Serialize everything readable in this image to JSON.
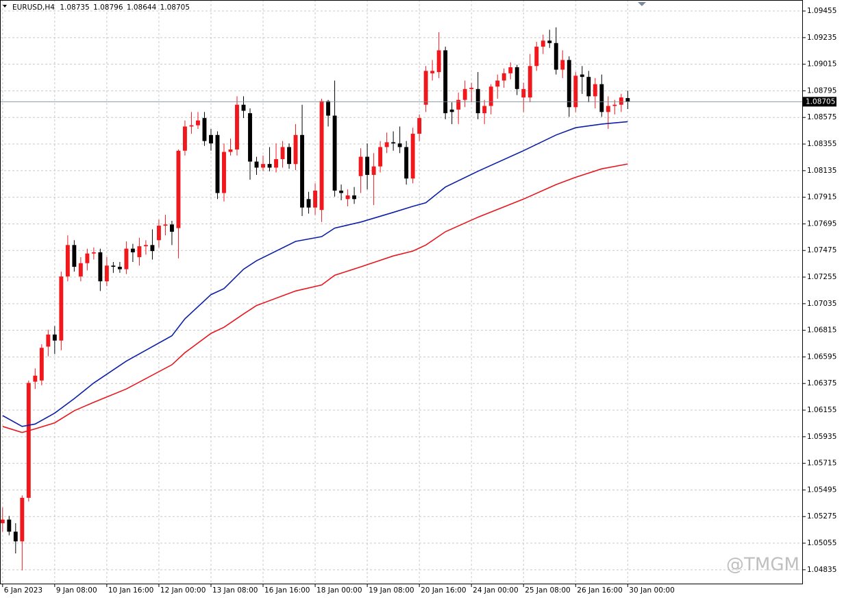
{
  "chart_data": {
    "type": "candlestick",
    "symbol": "EURUSD,H4",
    "watermark": "@TMGM",
    "up_color": "#f0171d",
    "down_color": "#000000",
    "grid": true,
    "xlim": [
      -0.4,
      122.9
    ],
    "ylim": [
      1.04715,
      1.09546
    ],
    "xticks": [
      {
        "value": 0,
        "label": "6 Jan 2023"
      },
      {
        "value": 8,
        "label": "9 Jan 08:00"
      },
      {
        "value": 16,
        "label": "10 Jan 16:00"
      },
      {
        "value": 24,
        "label": "12 Jan 00:00"
      },
      {
        "value": 32,
        "label": "13 Jan 08:00"
      },
      {
        "value": 40,
        "label": "16 Jan 16:00"
      },
      {
        "value": 48,
        "label": "18 Jan 00:00"
      },
      {
        "value": 56,
        "label": "19 Jan 08:00"
      },
      {
        "value": 64,
        "label": "20 Jan 16:00"
      },
      {
        "value": 72,
        "label": "24 Jan 00:00"
      },
      {
        "value": 80,
        "label": "25 Jan 08:00"
      },
      {
        "value": 88,
        "label": "26 Jan 16:00"
      },
      {
        "value": 96,
        "label": "30 Jan 00:00"
      }
    ],
    "yticks": [
      1.09455,
      1.09235,
      1.09015,
      1.08795,
      1.08575,
      1.08355,
      1.08135,
      1.07915,
      1.07695,
      1.07475,
      1.07255,
      1.07035,
      1.06815,
      1.06595,
      1.06375,
      1.06155,
      1.05935,
      1.05715,
      1.05495,
      1.05275,
      1.05055,
      1.04835
    ],
    "ohlc": [
      [
        1.0522,
        1.0535,
        1.0515,
        1.0525
      ],
      [
        1.0525,
        1.0528,
        1.0512,
        1.0515
      ],
      [
        1.0515,
        1.0522,
        1.0497,
        1.0507
      ],
      [
        1.0507,
        1.0545,
        1.0483,
        1.0543
      ],
      [
        1.0543,
        1.064,
        1.054,
        1.0638
      ],
      [
        1.0639,
        1.065,
        1.0633,
        1.0644
      ],
      [
        1.064,
        1.067,
        1.0636,
        1.0667
      ],
      [
        1.0668,
        1.0682,
        1.066,
        1.0678
      ],
      [
        1.0678,
        1.0685,
        1.0662,
        1.0673
      ],
      [
        1.0673,
        1.073,
        1.0665,
        1.0726
      ],
      [
        1.0726,
        1.076,
        1.0722,
        1.0752
      ],
      [
        1.0752,
        1.0756,
        1.073,
        1.0734
      ],
      [
        1.0726,
        1.0742,
        1.0722,
        1.0737
      ],
      [
        1.0737,
        1.0749,
        1.0731,
        1.0745
      ],
      [
        1.0745,
        1.075,
        1.074,
        1.0746
      ],
      [
        1.0746,
        1.0749,
        1.0714,
        1.0722
      ],
      [
        1.0722,
        1.0742,
        1.0718,
        1.0735
      ],
      [
        1.0735,
        1.0738,
        1.0729,
        1.0734
      ],
      [
        1.0734,
        1.0738,
        1.0729,
        1.0732
      ],
      [
        1.0732,
        1.0755,
        1.0728,
        1.0749
      ],
      [
        1.0749,
        1.0753,
        1.0738,
        1.0746
      ],
      [
        1.0742,
        1.0758,
        1.0735,
        1.0751
      ],
      [
        1.0751,
        1.0756,
        1.0744,
        1.0752
      ],
      [
        1.0752,
        1.0765,
        1.074,
        1.0747
      ],
      [
        1.0756,
        1.0773,
        1.075,
        1.0768
      ],
      [
        1.0768,
        1.0777,
        1.076,
        1.0769
      ],
      [
        1.0769,
        1.0772,
        1.0752,
        1.0763
      ],
      [
        1.0766,
        1.0831,
        1.0741,
        1.083
      ],
      [
        1.083,
        1.0855,
        1.0826,
        1.085
      ],
      [
        1.085,
        1.0862,
        1.0844,
        1.0851
      ],
      [
        1.0851,
        1.0862,
        1.0848,
        1.0855
      ],
      [
        1.0857,
        1.0862,
        1.0834,
        1.0838
      ],
      [
        1.0843,
        1.0848,
        1.083,
        1.0836
      ],
      [
        1.0843,
        1.0846,
        1.079,
        1.0795
      ],
      [
        1.0795,
        1.0836,
        1.0788,
        1.0829
      ],
      [
        1.0829,
        1.084,
        1.0826,
        1.0831
      ],
      [
        1.0831,
        1.0875,
        1.0826,
        1.0868
      ],
      [
        1.0868,
        1.0875,
        1.0857,
        1.0863
      ],
      [
        1.0861,
        1.0865,
        1.0806,
        1.0821
      ],
      [
        1.0821,
        1.0825,
        1.081,
        1.0816
      ],
      [
        1.0816,
        1.0826,
        1.0813,
        1.0819
      ],
      [
        1.0819,
        1.0833,
        1.0813,
        1.0816
      ],
      [
        1.0816,
        1.0836,
        1.0812,
        1.0823
      ],
      [
        1.0823,
        1.0838,
        1.0816,
        1.0833
      ],
      [
        1.0833,
        1.0836,
        1.0815,
        1.0819
      ],
      [
        1.0819,
        1.0852,
        1.0814,
        1.0843
      ],
      [
        1.0843,
        1.0868,
        1.0776,
        1.0783
      ],
      [
        1.079,
        1.0796,
        1.0778,
        1.0783
      ],
      [
        1.0783,
        1.0803,
        1.0777,
        1.0797
      ],
      [
        1.0781,
        1.0873,
        1.0771,
        1.0871
      ],
      [
        1.0871,
        1.0872,
        1.085,
        1.0859
      ],
      [
        1.0859,
        1.0888,
        1.0792,
        1.0797
      ],
      [
        1.0797,
        1.0802,
        1.0789,
        1.0795
      ],
      [
        1.079,
        1.0798,
        1.0784,
        1.0793
      ],
      [
        1.0793,
        1.08,
        1.0786,
        1.079
      ],
      [
        1.0809,
        1.0832,
        1.0795,
        1.0825
      ],
      [
        1.0825,
        1.0836,
        1.0798,
        1.081
      ],
      [
        1.081,
        1.0828,
        1.0785,
        1.0817
      ],
      [
        1.0817,
        1.0838,
        1.0812,
        1.0833
      ],
      [
        1.0833,
        1.0845,
        1.0828,
        1.0837
      ],
      [
        1.0837,
        1.0846,
        1.083,
        1.0836
      ],
      [
        1.0836,
        1.085,
        1.0828,
        1.0833
      ],
      [
        1.0833,
        1.0838,
        1.0802,
        1.0807
      ],
      [
        1.0807,
        1.0849,
        1.0803,
        1.0844
      ],
      [
        1.0844,
        1.086,
        1.0838,
        1.0857
      ],
      [
        1.0868,
        1.09,
        1.0862,
        1.0896
      ],
      [
        1.0894,
        1.0905,
        1.0888,
        1.0896
      ],
      [
        1.0895,
        1.0928,
        1.089,
        1.0913
      ],
      [
        1.0913,
        1.0916,
        1.0856,
        1.0861
      ],
      [
        1.0864,
        1.087,
        1.0852,
        1.0862
      ],
      [
        1.0864,
        1.0878,
        1.0852,
        1.0872
      ],
      [
        1.0872,
        1.0888,
        1.0866,
        1.0881
      ],
      [
        1.0881,
        1.0886,
        1.087,
        1.0882
      ],
      [
        1.0881,
        1.0895,
        1.0856,
        1.0861
      ],
      [
        1.0861,
        1.0872,
        1.0852,
        1.0867
      ],
      [
        1.0867,
        1.0885,
        1.086,
        1.0883
      ],
      [
        1.0883,
        1.0893,
        1.0873,
        1.0888
      ],
      [
        1.0888,
        1.0898,
        1.0882,
        1.0894
      ],
      [
        1.0894,
        1.0903,
        1.0889,
        1.0899
      ],
      [
        1.0899,
        1.0901,
        1.0876,
        1.0881
      ],
      [
        1.0874,
        1.0886,
        1.0862,
        1.0881
      ],
      [
        1.0874,
        1.091,
        1.087,
        1.09
      ],
      [
        1.09,
        1.092,
        1.0896,
        1.0916
      ],
      [
        1.0916,
        1.0926,
        1.091,
        1.0921
      ],
      [
        1.0921,
        1.093,
        1.0915,
        1.0919
      ],
      [
        1.0919,
        1.0932,
        1.0893,
        1.0897
      ],
      [
        1.0897,
        1.0913,
        1.089,
        1.0905
      ],
      [
        1.0905,
        1.0908,
        1.0858,
        1.0866
      ],
      [
        1.0866,
        1.0895,
        1.0862,
        1.0892
      ],
      [
        1.0893,
        1.09,
        1.0877,
        1.0891
      ],
      [
        1.0891,
        1.0896,
        1.087,
        1.0875
      ],
      [
        1.0875,
        1.089,
        1.0865,
        1.0885
      ],
      [
        1.0885,
        1.0893,
        1.0858,
        1.0862
      ],
      [
        1.0862,
        1.0875,
        1.0848,
        1.0867
      ],
      [
        1.0867,
        1.0872,
        1.086,
        1.0868
      ],
      [
        1.0868,
        1.0877,
        1.0862,
        1.0874
      ],
      [
        1.08735,
        1.08796,
        1.08644,
        1.08705
      ]
    ],
    "series": [
      {
        "type": "line",
        "color": "#0b1fa6",
        "x": [
          0,
          3,
          5,
          8,
          11,
          14,
          19,
          26,
          28,
          32,
          34,
          37,
          39,
          45,
          49,
          51,
          55,
          60,
          63,
          65,
          68,
          73,
          80,
          85,
          88,
          92,
          96
        ],
        "values": [
          1.0611,
          1.0602,
          1.0604,
          1.0613,
          1.0625,
          1.0638,
          1.0656,
          1.0677,
          1.0691,
          1.0711,
          1.0716,
          1.0732,
          1.0739,
          1.0755,
          1.0759,
          1.0766,
          1.0771,
          1.0779,
          1.0784,
          1.0787,
          1.08,
          1.0813,
          1.083,
          1.0843,
          1.0849,
          1.0852,
          1.0854
        ]
      },
      {
        "type": "line",
        "color": "#e8161c",
        "x": [
          0,
          3,
          5,
          8,
          11,
          14,
          19,
          26,
          28,
          32,
          34,
          37,
          39,
          45,
          49,
          51,
          55,
          60,
          63,
          65,
          68,
          73,
          80,
          85,
          88,
          92,
          96
        ],
        "values": [
          1.0602,
          1.0597,
          1.06,
          1.0605,
          1.0615,
          1.0622,
          1.0633,
          1.0653,
          1.0663,
          1.0679,
          1.0684,
          1.0695,
          1.0702,
          1.0714,
          1.0719,
          1.0727,
          1.0734,
          1.0743,
          1.0747,
          1.0752,
          1.0763,
          1.0775,
          1.079,
          1.0802,
          1.0808,
          1.0815,
          1.0819
        ]
      }
    ]
  }
}
